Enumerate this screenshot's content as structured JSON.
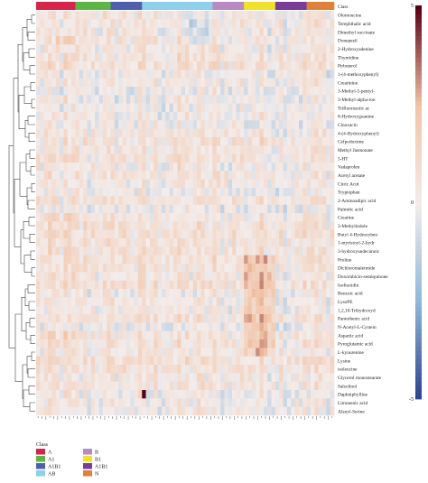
{
  "chart_data": {
    "type": "heatmap",
    "title": "",
    "class_label": "Class",
    "class_groups": [
      {
        "name": "A",
        "color": "#d6244a",
        "count": 10
      },
      {
        "name": "A1",
        "color": "#5fb446",
        "count": 9
      },
      {
        "name": "A1B1",
        "color": "#4f5fae",
        "count": 8
      },
      {
        "name": "AB",
        "color": "#8ed0ea",
        "count": 18
      },
      {
        "name": "B",
        "color": "#b98ac2",
        "count": 8
      },
      {
        "name": "B1",
        "color": "#f1e12a",
        "count": 8
      },
      {
        "name": "A1B1",
        "color": "#7a3c98",
        "count": 8
      },
      {
        "name": "N",
        "color": "#df8138",
        "count": 7
      }
    ],
    "rows": [
      "Olomoucine",
      "Terephthalic acid",
      "Dimethyl succinate",
      "Donepezil",
      "2-Hydroxyadenine",
      "Thymidine",
      "Pirbuterol",
      "1-(4-methoxyphenyl)",
      "Creatinine",
      "3-Methyl-5-pentyl-",
      "3-Methyl-alpha-ion",
      "Trifluorosotic ac",
      "8-Hydroxyguanine",
      "Cinoxacin",
      "4-(4-Hydroxyphenyl)",
      "Cefpodoxime",
      "Methyl Jasmonate",
      "5-HT",
      "Vadaprofen",
      "Acetyl acetate",
      "Citric Acid",
      "Tryptophan",
      "2-Aminoadipic acid",
      "Palmitic acid",
      "Creatine",
      "3-Methylindole",
      "Butyl 4-Hydroxyben",
      "1-myristoyl-2-hydr",
      "3-hydroxyundecanoic",
      "Proline",
      "Dichloromaleimide",
      "Doxorubicin-semiquinone",
      "Isofraxidin",
      "Benzoic acid",
      "LysoPE",
      "1,2,10-Trihydroxyd",
      "Pantothenic acid",
      "N-Acetyl-L-Cystein",
      "Aspartic acid",
      "Pyroglutamic acid",
      "L-kynurenine",
      "Lysine",
      "isoleucine",
      "Glycerol monostearate",
      "Salsolinol",
      "Daphniphylline",
      "Limonenic acid",
      "Alanyl-Serine"
    ],
    "value_range": [
      -5,
      5
    ],
    "colorbar_ticks": [
      5,
      0,
      -5
    ],
    "colormap": [
      "#2b3f8c",
      "#8fb6d9",
      "#f3eceb",
      "#f2c3a6",
      "#5b0012"
    ],
    "row_dendrogram": true,
    "column_labels_legible": false,
    "legend_placement": "bottom-left"
  }
}
